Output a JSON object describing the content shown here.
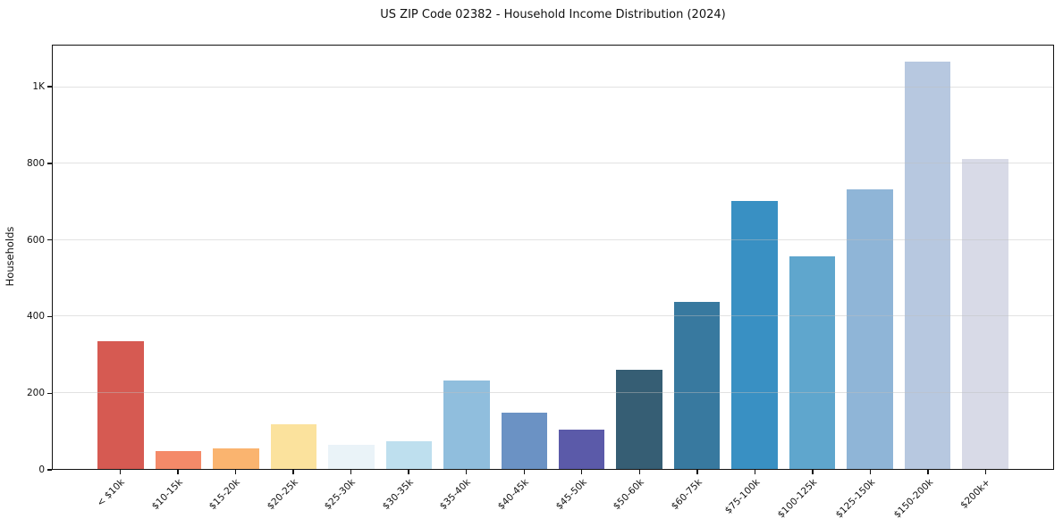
{
  "figure": {
    "kind": "static-chart-image"
  },
  "chart_data": {
    "type": "bar",
    "title": "US ZIP Code 02382 - Household Income Distribution (2024)",
    "xlabel": "",
    "ylabel": "Households",
    "categories": [
      "< $10k",
      "$10-15k",
      "$15-20k",
      "$20-25k",
      "$25-30k",
      "$30-35k",
      "$35-40k",
      "$40-45k",
      "$45-50k",
      "$50-60k",
      "$60-75k",
      "$75-100k",
      "$100-125k",
      "$125-150k",
      "$150-200k",
      "$200k+"
    ],
    "values": [
      334,
      48,
      55,
      118,
      64,
      72,
      232,
      147,
      104,
      260,
      437,
      703,
      558,
      733,
      1068,
      812
    ],
    "bar_colors": [
      "#d65a52",
      "#f48a69",
      "#fab46f",
      "#fbe29d",
      "#eaf3f8",
      "#bedfee",
      "#90bedd",
      "#6b92c4",
      "#5b5aa9",
      "#365e74",
      "#38799f",
      "#3990c3",
      "#5fa6cd",
      "#8fb5d7",
      "#b7c8e0",
      "#d8dae7"
    ],
    "ylim": [
      0,
      1110
    ],
    "yticks": [
      {
        "value": 0,
        "label": "0"
      },
      {
        "value": 200,
        "label": "200"
      },
      {
        "value": 400,
        "label": "400"
      },
      {
        "value": 600,
        "label": "600"
      },
      {
        "value": 800,
        "label": "800"
      },
      {
        "value": 1000,
        "label": "1K"
      }
    ],
    "grid": "horizontal-light-gray",
    "legend": "none",
    "background": "#ffffff",
    "colors": {
      "text": "#111111",
      "grid": "#e7e7e7",
      "spine": "#111111"
    }
  }
}
